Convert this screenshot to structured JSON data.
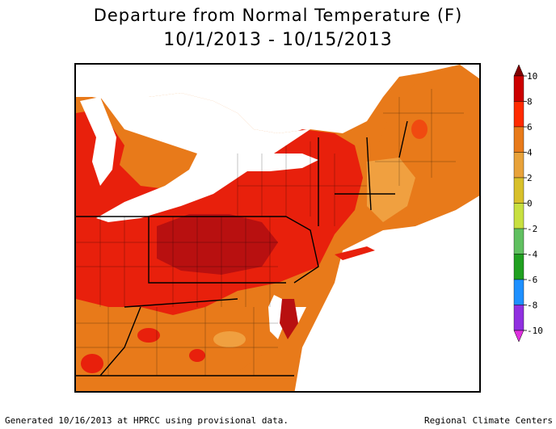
{
  "title": "Departure from Normal Temperature (F)",
  "date_range": "10/1/2013 - 10/15/2013",
  "legend": {
    "ticks": [
      "10",
      "8",
      "6",
      "4",
      "2",
      "0",
      "-2",
      "-4",
      "-6",
      "-8",
      "-10"
    ],
    "colors": [
      "#800000",
      "#cc0000",
      "#ff2a00",
      "#e87a1a",
      "#e8a23a",
      "#d8c02a",
      "#c8e040",
      "#60c060",
      "#20a020",
      "#1e90ff",
      "#9030e0",
      "#e030e0"
    ]
  },
  "map": {
    "region": "Northeast US",
    "palette": {
      "water": "#ffffff",
      "land_dark_red": "#b81010",
      "land_red": "#e8200c",
      "land_orange_red": "#f04a10",
      "land_orange": "#e87a1a",
      "land_light_orange": "#f0a040",
      "land_yellow": "#e8c040"
    }
  },
  "footer": {
    "left": "Generated 10/16/2013 at HPRCC using provisional data.",
    "right": "Regional Climate Centers"
  }
}
